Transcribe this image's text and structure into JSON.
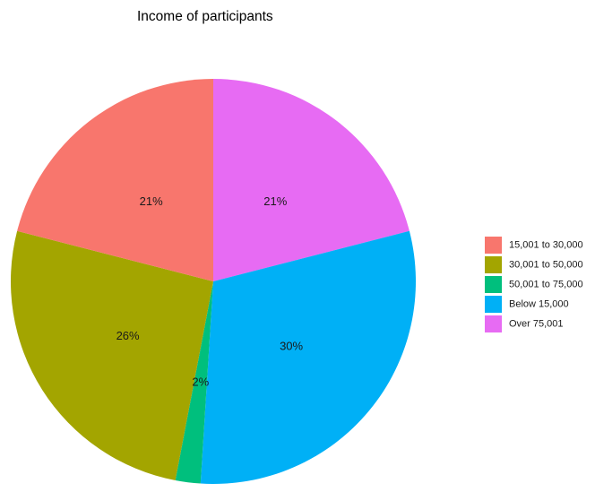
{
  "chart_data": {
    "type": "pie",
    "title": "Income of participants",
    "start": "12 o'clock",
    "direction": "clockwise",
    "slices": [
      {
        "label": "Over 75,001",
        "value": 21,
        "display": "21%",
        "color": "#E76BF3"
      },
      {
        "label": "Below 15,000",
        "value": 30,
        "display": "30%",
        "color": "#00B0F6"
      },
      {
        "label": "50,001 to 75,000",
        "value": 2,
        "display": "2%",
        "color": "#00BF7D"
      },
      {
        "label": "30,001 to 50,000",
        "value": 26,
        "display": "26%",
        "color": "#A3A500"
      },
      {
        "label": "15,001 to 30,000",
        "value": 21,
        "display": "21%",
        "color": "#F8766D"
      }
    ],
    "legend": {
      "position": "right",
      "entries": [
        {
          "label": "15,001 to 30,000",
          "color": "#F8766D"
        },
        {
          "label": "30,001 to 50,000",
          "color": "#A3A500"
        },
        {
          "label": "50,001 to 75,000",
          "color": "#00BF7D"
        },
        {
          "label": "Below 15,000",
          "color": "#00B0F6"
        },
        {
          "label": "Over 75,001",
          "color": "#E76BF3"
        }
      ]
    }
  }
}
